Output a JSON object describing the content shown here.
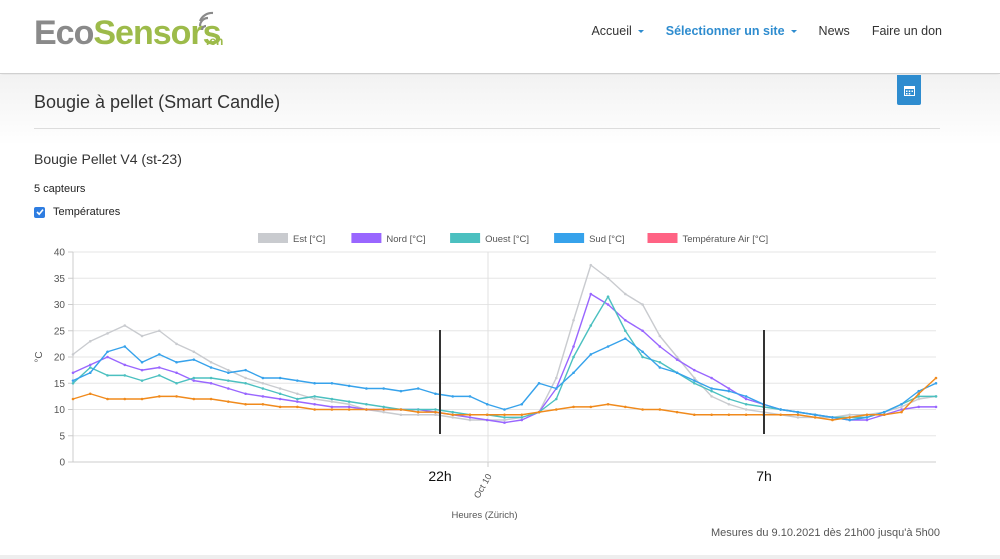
{
  "header": {
    "logo_eco": "Eco",
    "logo_sensors": "Sensors",
    "logo_ch": ".ch",
    "nav": [
      {
        "label": "Accueil",
        "dropdown": true,
        "active": false
      },
      {
        "label": "Sélectionner un site",
        "dropdown": true,
        "active": true
      },
      {
        "label": "News",
        "dropdown": false,
        "active": false
      },
      {
        "label": "Faire un don",
        "dropdown": false,
        "active": false
      }
    ],
    "calendar_icon": "calendar-icon",
    "accent_color": "#2e8ccf"
  },
  "page": {
    "title": "Bougie à pellet (Smart Candle)",
    "subtitle": "Bougie Pellet V4 (st-23)",
    "sensor_count": "5 capteurs",
    "checkbox_label": "Températures",
    "checkbox_checked": true,
    "footer_note": "Mesures du 9.10.2021 dès 21h00 jusqu'à 5h00"
  },
  "chart_data": {
    "type": "line",
    "xlabel": "Heures (Zürich)",
    "ylabel": "°C",
    "ylim": [
      0,
      40
    ],
    "yticks": [
      0,
      5,
      10,
      15,
      20,
      25,
      30,
      35,
      40
    ],
    "x_tick_label": "Oct 10",
    "grid": true,
    "legend_position": "top",
    "markers": [
      {
        "label": "22h"
      },
      {
        "label": "7h"
      }
    ],
    "series": [
      {
        "name": "Est [°C]",
        "color": "#c9cbcf",
        "values": [
          20.5,
          23,
          24.5,
          26,
          24,
          25,
          22.5,
          21,
          19,
          17.5,
          16,
          15,
          14,
          13,
          12,
          11.5,
          11,
          10,
          9.5,
          9,
          9,
          9,
          8.5,
          8,
          8,
          8,
          8.5,
          9.5,
          16,
          27,
          37.5,
          35,
          32,
          30,
          24,
          20,
          16,
          12.5,
          11,
          10,
          9.5,
          9,
          8.5,
          8.5,
          8.5,
          9,
          9,
          9.5,
          10.5,
          12,
          12.5
        ]
      },
      {
        "name": "Nord [°C]",
        "color": "#9966ff",
        "values": [
          17,
          18.5,
          20,
          18.5,
          17.5,
          18,
          17,
          15.5,
          15,
          14,
          13,
          12.5,
          12,
          11.5,
          11,
          10.5,
          10.5,
          10,
          10,
          10,
          10,
          9.5,
          9,
          8.5,
          8,
          7.5,
          8,
          9.5,
          14,
          22,
          32,
          30,
          27,
          25,
          22,
          19.5,
          17.5,
          16,
          14,
          12,
          11,
          10,
          9.5,
          9,
          8.5,
          8,
          8,
          9,
          10,
          10.5,
          10.5
        ]
      },
      {
        "name": "Ouest [°C]",
        "color": "#4bc0c0",
        "values": [
          15,
          18,
          16.5,
          16.5,
          15.5,
          16.5,
          15,
          16,
          16,
          15.5,
          15,
          14,
          13,
          12,
          12.5,
          12,
          11.5,
          11,
          10.5,
          10,
          10,
          10,
          9.5,
          9,
          9,
          8.5,
          8.5,
          9.5,
          12,
          20,
          26,
          31.5,
          25,
          20,
          19,
          17,
          15,
          13.5,
          12,
          11,
          10.5,
          10,
          9.5,
          9,
          8.5,
          8.5,
          8.5,
          9.5,
          11,
          12.5,
          12.5
        ]
      },
      {
        "name": "Sud [°C]",
        "color": "#36a2eb",
        "values": [
          15.5,
          17,
          21,
          22,
          19,
          20.5,
          19,
          19.5,
          18,
          17,
          17.5,
          16,
          16,
          15.5,
          15,
          15,
          14.5,
          14,
          14,
          13.5,
          14,
          13,
          12.5,
          12.5,
          11,
          10,
          11,
          15,
          14,
          17,
          20.5,
          22,
          23.5,
          21,
          18,
          17,
          15.5,
          14,
          13.5,
          12.5,
          11,
          10,
          9.5,
          9,
          8.5,
          8,
          8.5,
          9.5,
          11,
          13.5,
          15
        ]
      },
      {
        "name": "Température Air [°C]",
        "color": "#ff6384",
        "line_color": "#f08a1c",
        "values": [
          12,
          13,
          12,
          12,
          12,
          12.5,
          12.5,
          12,
          12,
          11.5,
          11,
          11,
          10.5,
          10.5,
          10,
          10,
          10,
          10,
          10,
          10,
          9.5,
          9.5,
          9,
          9,
          9,
          9,
          9,
          9.5,
          10,
          10.5,
          10.5,
          11,
          10.5,
          10,
          10,
          9.5,
          9,
          9,
          9,
          9,
          9,
          9,
          9,
          8.5,
          8,
          8.5,
          9,
          9,
          9.5,
          13,
          16
        ]
      }
    ]
  }
}
